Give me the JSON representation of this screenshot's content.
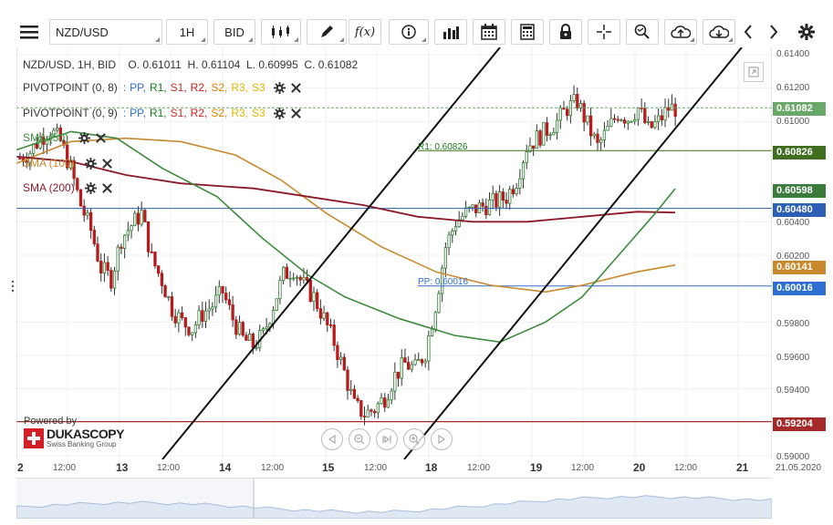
{
  "toolbar": {
    "symbol": "NZD/USD",
    "timeframe": "1H",
    "price_type": "BID"
  },
  "ohlc": {
    "prefix": "NZD/USD, 1H, BID",
    "open": "O. 0.61011",
    "high": "H. 0.61104",
    "low": "L. 0.60995",
    "close": "C. 0.61082"
  },
  "indicators": {
    "pivot1": {
      "name": "PIVOTPOINT (0, 8)",
      "sep": ":"
    },
    "pivot2": {
      "name": "PIVOTPOINT (0, 9)",
      "sep": ":"
    },
    "levels": [
      "PP,",
      "R1,",
      "S1,",
      "R2,",
      "S2,",
      "R3,",
      "S3"
    ],
    "sma50": "SMA (50)",
    "sma100": "SMA (100)",
    "sma200": "SMA (200)"
  },
  "levels_colors": {
    "PP": "#2f6fd1",
    "R": "#1a7a1a",
    "S": "#c0312b",
    "R2": "#d11a1a",
    "S2": "#e08000",
    "R3": "#e0b800",
    "S3": "#e0b800"
  },
  "chart_lines": {
    "r1_label": "R1: 0.60826",
    "pp_label": "PP: 0.60016"
  },
  "price_axis": {
    "ticks": [
      "0.61400",
      "0.61200",
      "0.61000",
      "0.60400",
      "0.60200",
      "0.59800",
      "0.59600",
      "0.59400",
      "0.59000"
    ],
    "badges": [
      {
        "value": "0.61082",
        "color": "#6aa86a"
      },
      {
        "value": "0.60826",
        "color": "#3f6e1f"
      },
      {
        "value": "0.60598",
        "color": "#3d7a3d"
      },
      {
        "value": "0.60480",
        "color": "#2c5fb5"
      },
      {
        "value": "0.60141",
        "color": "#c8892d"
      },
      {
        "value": "0.60016",
        "color": "#2f6fd1"
      },
      {
        "value": "0.59204",
        "color": "#a52a2a"
      }
    ]
  },
  "time_axis": {
    "labels": [
      "2",
      "12:00",
      "13",
      "12:00",
      "14",
      "12:00",
      "15",
      "12:00",
      "18",
      "12:00",
      "19",
      "12:00",
      "20",
      "12:00",
      "21",
      "21.05.2020"
    ]
  },
  "branding": {
    "powered": "Powered by",
    "brand": "DUKASCOPY",
    "sub": "Swiss Banking Group"
  },
  "colors": {
    "sma50": "#3d8a3d",
    "sma100": "#c8892d",
    "sma200": "#8b1a2b",
    "bull": "#2e7d32",
    "bear": "#b71c1c"
  },
  "chart_data": {
    "type": "candlestick",
    "series": [
      {
        "name": "NZD/USD"
      },
      {
        "name": "SMA (50)"
      },
      {
        "name": "SMA (100)"
      },
      {
        "name": "SMA (200)"
      }
    ],
    "ylim": [
      0.59,
      0.614
    ],
    "y_ticks": [
      0.614,
      0.612,
      0.61,
      0.604,
      0.602,
      0.598,
      0.596,
      0.594,
      0.59
    ],
    "x_ticks": [
      "2",
      "12:00",
      "13",
      "12:00",
      "14",
      "12:00",
      "15",
      "12:00",
      "18",
      "12:00",
      "19",
      "12:00",
      "20",
      "12:00",
      "21"
    ],
    "last_close": 0.61082,
    "r1": 0.60826,
    "pp": 0.60016,
    "s_level": 0.59204,
    "sma50_last": 0.60598,
    "sma100_last": 0.60141,
    "sma200_last": 0.6048,
    "close_path": [
      0.6078,
      0.6082,
      0.609,
      0.6095,
      0.6088,
      0.6072,
      0.605,
      0.6035,
      0.6012,
      0.6006,
      0.603,
      0.6038,
      0.6045,
      0.6018,
      0.6005,
      0.5988,
      0.598,
      0.5976,
      0.5985,
      0.599,
      0.5998,
      0.5982,
      0.597,
      0.5966,
      0.5972,
      0.599,
      0.6008,
      0.6012,
      0.6002,
      0.5995,
      0.5982,
      0.5968,
      0.595,
      0.593,
      0.5925,
      0.5928,
      0.5935,
      0.5948,
      0.5955,
      0.5952,
      0.5962,
      0.599,
      0.6025,
      0.604,
      0.6045,
      0.6048,
      0.605,
      0.6052,
      0.6055,
      0.6065,
      0.6085,
      0.609,
      0.6095,
      0.61,
      0.6108,
      0.6112,
      0.6098,
      0.6085,
      0.6095,
      0.6105,
      0.6102,
      0.6108,
      0.6095,
      0.61,
      0.6108
    ]
  }
}
